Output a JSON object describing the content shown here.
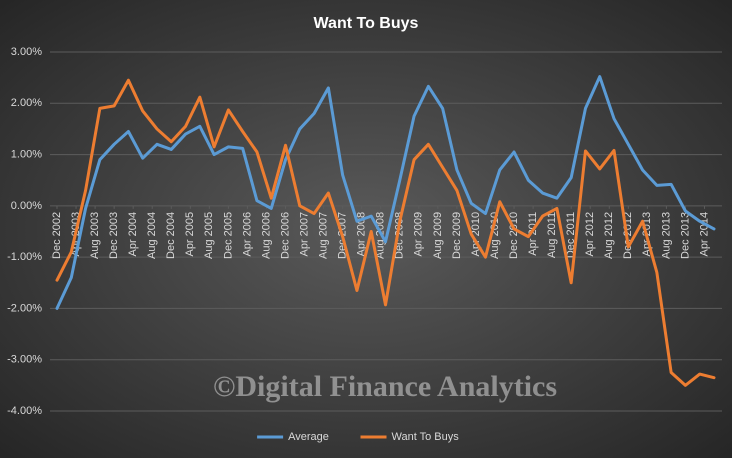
{
  "chart_data": {
    "type": "line",
    "title": "Want To Buys",
    "watermark": "©Digital Finance Analytics",
    "x": [
      "2002-12",
      "2003-03",
      "2003-06",
      "2003-09",
      "2003-12",
      "2004-03",
      "2004-06",
      "2004-09",
      "2004-12",
      "2005-03",
      "2005-06",
      "2005-09",
      "2005-12",
      "2006-03",
      "2006-06",
      "2006-09",
      "2006-12",
      "2007-03",
      "2007-06",
      "2007-09",
      "2007-12",
      "2008-03",
      "2008-06",
      "2008-09",
      "2008-12",
      "2009-03",
      "2009-06",
      "2009-09",
      "2009-12",
      "2010-03",
      "2010-06",
      "2010-09",
      "2010-12",
      "2011-03",
      "2011-06",
      "2011-09",
      "2011-12",
      "2012-03",
      "2012-06",
      "2012-09",
      "2012-12",
      "2013-03",
      "2013-06",
      "2013-09",
      "2013-12",
      "2014-03",
      "2014-06"
    ],
    "xlim": [
      "2002-12",
      "2014-06"
    ],
    "xticks": [
      {
        "value": "2002-12",
        "label": "Dec 2002"
      },
      {
        "value": "2003-04",
        "label": "Apr 2003"
      },
      {
        "value": "2003-08",
        "label": "Aug 2003"
      },
      {
        "value": "2003-12",
        "label": "Dec 2003"
      },
      {
        "value": "2004-04",
        "label": "Apr 2004"
      },
      {
        "value": "2004-08",
        "label": "Aug 2004"
      },
      {
        "value": "2004-12",
        "label": "Dec 2004"
      },
      {
        "value": "2005-04",
        "label": "Apr 2005"
      },
      {
        "value": "2005-08",
        "label": "Aug 2005"
      },
      {
        "value": "2005-12",
        "label": "Dec 2005"
      },
      {
        "value": "2006-04",
        "label": "Apr 2006"
      },
      {
        "value": "2006-08",
        "label": "Aug 2006"
      },
      {
        "value": "2006-12",
        "label": "Dec 2006"
      },
      {
        "value": "2007-04",
        "label": "Apr 2007"
      },
      {
        "value": "2007-08",
        "label": "Aug 2007"
      },
      {
        "value": "2007-12",
        "label": "Dec 2007"
      },
      {
        "value": "2008-04",
        "label": "Apr 2008"
      },
      {
        "value": "2008-08",
        "label": "Aug 2008"
      },
      {
        "value": "2008-12",
        "label": "Dec 2008"
      },
      {
        "value": "2009-04",
        "label": "Apr 2009"
      },
      {
        "value": "2009-08",
        "label": "Aug 2009"
      },
      {
        "value": "2009-12",
        "label": "Dec 2009"
      },
      {
        "value": "2010-04",
        "label": "Apr 2010"
      },
      {
        "value": "2010-08",
        "label": "Aug 2010"
      },
      {
        "value": "2010-12",
        "label": "Dec 2010"
      },
      {
        "value": "2011-04",
        "label": "Apr 2011"
      },
      {
        "value": "2011-08",
        "label": "Aug 2011"
      },
      {
        "value": "2011-12",
        "label": "Dec 2011"
      },
      {
        "value": "2012-04",
        "label": "Apr 2012"
      },
      {
        "value": "2012-08",
        "label": "Aug 2012"
      },
      {
        "value": "2012-12",
        "label": "Dec 2012"
      },
      {
        "value": "2013-04",
        "label": "Apr 2013"
      },
      {
        "value": "2013-08",
        "label": "Aug 2013"
      },
      {
        "value": "2013-12",
        "label": "Dec 2013"
      },
      {
        "value": "2014-04",
        "label": "Apr 2014"
      }
    ],
    "ylim": [
      -4,
      3
    ],
    "yticks": [
      {
        "value": -4,
        "label": "-4.00%"
      },
      {
        "value": -3,
        "label": "-3.00%"
      },
      {
        "value": -2,
        "label": "-2.00%"
      },
      {
        "value": -1,
        "label": "-1.00%"
      },
      {
        "value": 0,
        "label": "0.00%"
      },
      {
        "value": 1,
        "label": "1.00%"
      },
      {
        "value": 2,
        "label": "2.00%"
      },
      {
        "value": 3,
        "label": "3.00%"
      }
    ],
    "grid": true,
    "legend": "bottom",
    "series": [
      {
        "name": "Average",
        "color": "#5b9bd5",
        "values": [
          -2.0,
          -1.4,
          -0.05,
          0.9,
          1.2,
          1.45,
          0.93,
          1.2,
          1.1,
          1.4,
          1.55,
          1.0,
          1.15,
          1.12,
          0.1,
          -0.05,
          0.9,
          1.5,
          1.8,
          2.3,
          0.6,
          -0.3,
          -0.2,
          -0.7,
          0.5,
          1.75,
          2.33,
          1.9,
          0.7,
          0.05,
          -0.15,
          0.7,
          1.05,
          0.5,
          0.25,
          0.15,
          0.55,
          1.9,
          2.52,
          1.7,
          1.2,
          0.7,
          0.4,
          0.42,
          -0.1,
          -0.3,
          -0.45
        ]
      },
      {
        "name": "Want To Buys",
        "color": "#ed7d31",
        "values": [
          -1.45,
          -0.9,
          0.3,
          1.9,
          1.95,
          2.45,
          1.85,
          1.5,
          1.25,
          1.55,
          2.12,
          1.15,
          1.87,
          1.45,
          1.05,
          0.15,
          1.18,
          0.0,
          -0.15,
          0.25,
          -0.6,
          -1.65,
          -0.5,
          -1.93,
          -0.3,
          0.9,
          1.2,
          0.75,
          0.3,
          -0.55,
          -1.0,
          0.08,
          -0.45,
          -0.6,
          -0.2,
          -0.05,
          -1.5,
          1.07,
          0.72,
          1.08,
          -0.8,
          -0.3,
          -1.3,
          -3.25,
          -3.5,
          -3.28,
          -3.35
        ]
      }
    ]
  }
}
